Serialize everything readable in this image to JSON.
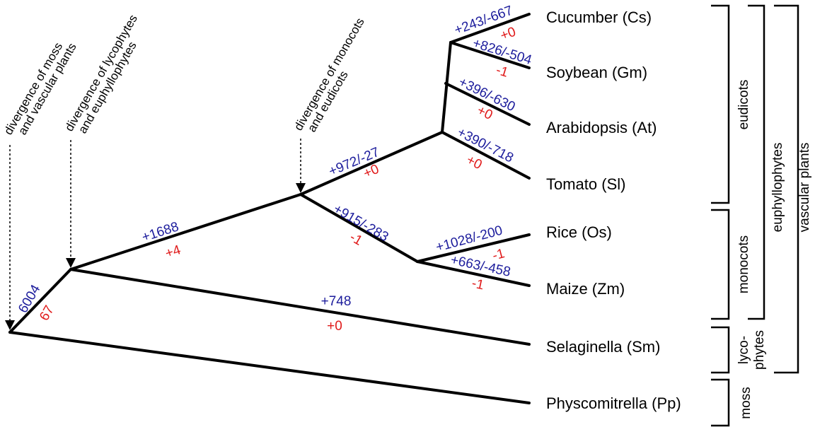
{
  "species": [
    {
      "id": "cs",
      "label": "Cucumber (Cs)"
    },
    {
      "id": "gm",
      "label": "Soybean (Gm)"
    },
    {
      "id": "at",
      "label": "Arabidopsis (At)"
    },
    {
      "id": "sl",
      "label": "Tomato (Sl)"
    },
    {
      "id": "os",
      "label": "Rice (Os)"
    },
    {
      "id": "zm",
      "label": "Maize (Zm)"
    },
    {
      "id": "sm",
      "label": "Selaginella (Sm)"
    },
    {
      "id": "pp",
      "label": "Physcomitrella (Pp)"
    }
  ],
  "annotations": {
    "moss_vascular": [
      "divergence of moss",
      "and vascular plants"
    ],
    "lyco_euphyll": [
      "divergence of lycophytes",
      "and euphyllophytes"
    ],
    "mono_eudi": [
      "divergence of monocots",
      "and eudicots"
    ]
  },
  "branch_labels": {
    "root_gain": "6004",
    "root_loss": "67",
    "euphyll_gain": "+1688",
    "euphyll_loss": "+4",
    "sm_gain": "+748",
    "sm_loss": "+0",
    "eudicot_gain": "+972/-27",
    "eudicot_loss": "+0",
    "monocot_gain": "+915/-283",
    "monocot_loss": "-1",
    "cs_gain": "+243/-667",
    "cs_loss": "+0",
    "gm_gain": "+826/-504",
    "gm_loss": "-1",
    "at_gain": "+396/-630",
    "at_loss": "+0",
    "sl_gain": "+390/-718",
    "sl_loss": "+0",
    "os_gain": "+1028/-200",
    "os_loss": "-1",
    "zm_gain": "+663/-458",
    "zm_loss": "-1"
  },
  "clades": {
    "eudicots": "eudicots",
    "monocots": "monocots",
    "lyco": [
      "lyco-",
      "phytes"
    ],
    "moss": "moss",
    "euphyllophytes": "euphyllophytes",
    "vascular": "vascular plants"
  },
  "colors": {
    "gain": "#1c1c9c",
    "loss": "#e01b1b",
    "tree": "#000000"
  }
}
